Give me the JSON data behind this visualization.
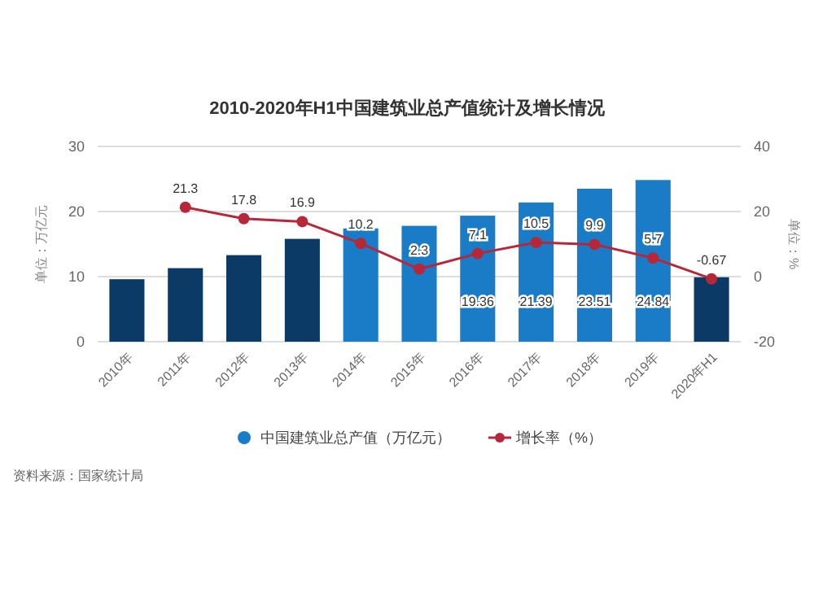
{
  "chart_data": {
    "type": "bar",
    "title": "2010-2020年H1中国建筑业总产值统计及增长情况",
    "categories": [
      "2010年",
      "2011年",
      "2012年",
      "2013年",
      "2014年",
      "2015年",
      "2016年",
      "2017年",
      "2018年",
      "2019年",
      "2020年H1"
    ],
    "ylabel": "单位：万亿元",
    "y2label": "单位：%",
    "ylim": [
      0,
      30
    ],
    "yticks": [
      0,
      10,
      20,
      30
    ],
    "y2lim": [
      -20,
      40
    ],
    "y2ticks": [
      -20,
      0,
      20,
      40
    ],
    "series": [
      {
        "name": "中国建筑业总产值（万亿元）",
        "color": "#1a7cc6",
        "colors": [
          "#0c3a66",
          "#0c3a66",
          "#0c3a66",
          "#0c3a66",
          "#1a7cc6",
          "#1a7cc6",
          "#1a7cc6",
          "#1a7cc6",
          "#1a7cc6",
          "#1a7cc6",
          "#0c3a66"
        ],
        "values": [
          9.6,
          11.3,
          13.3,
          15.8,
          17.4,
          17.8,
          19.36,
          21.39,
          23.51,
          24.84,
          9.9
        ],
        "value_labels": [
          null,
          null,
          null,
          null,
          null,
          null,
          "19.36",
          "21.39",
          "23.51",
          "24.84",
          null
        ]
      },
      {
        "name": "增长率（%）",
        "type": "line",
        "axis": "y2",
        "color": "#b5283a",
        "marker": "circle",
        "values": [
          null,
          21.3,
          17.8,
          16.9,
          10.2,
          2.3,
          7.1,
          10.5,
          9.9,
          5.7,
          -0.67
        ],
        "value_labels": [
          null,
          "21.3",
          "17.8",
          "16.9",
          "10.2",
          "2.3",
          "7.1",
          "10.5",
          "9.9",
          "5.7",
          "-0.67"
        ]
      }
    ],
    "grid": "y",
    "legend": "bottom",
    "annotations": [
      "资料来源：国家统计局"
    ]
  }
}
